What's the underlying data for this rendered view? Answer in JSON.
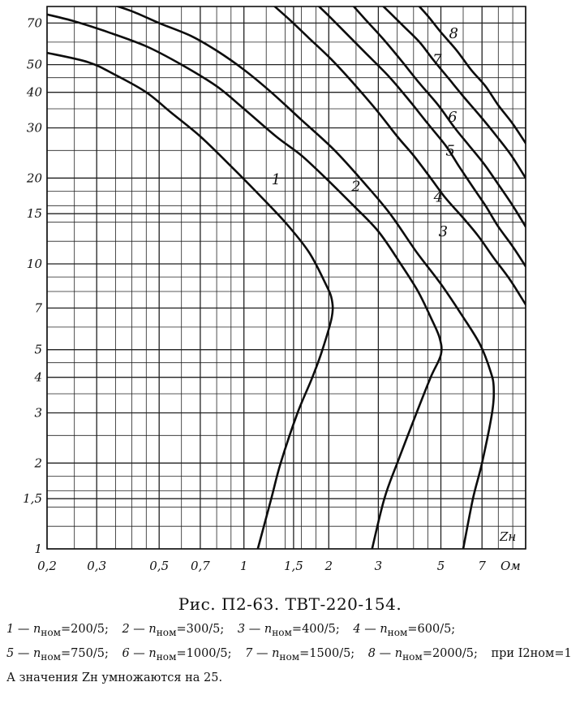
{
  "chart_data": {
    "type": "line",
    "title": "",
    "x_scale": "log",
    "y_scale": "log",
    "xlim": [
      0.2,
      10
    ],
    "ylim": [
      1,
      80
    ],
    "x_unit_label": "Ом",
    "y_label": "",
    "corner_label": "Zн",
    "x_ticks": [
      {
        "v": 0.2,
        "label": "0,2"
      },
      {
        "v": 0.3,
        "label": "0,3"
      },
      {
        "v": 0.5,
        "label": "0,5"
      },
      {
        "v": 0.7,
        "label": "0,7"
      },
      {
        "v": 1,
        "label": "1"
      },
      {
        "v": 1.5,
        "label": "1,5"
      },
      {
        "v": 2,
        "label": "2"
      },
      {
        "v": 3,
        "label": "3"
      },
      {
        "v": 5,
        "label": "5"
      },
      {
        "v": 7,
        "label": "7"
      }
    ],
    "y_ticks": [
      {
        "v": 1,
        "label": "1"
      },
      {
        "v": 1.5,
        "label": "1,5"
      },
      {
        "v": 2,
        "label": "2"
      },
      {
        "v": 3,
        "label": "3"
      },
      {
        "v": 4,
        "label": "4"
      },
      {
        "v": 5,
        "label": "5"
      },
      {
        "v": 7,
        "label": "7"
      },
      {
        "v": 10,
        "label": "10"
      },
      {
        "v": 15,
        "label": "15"
      },
      {
        "v": 20,
        "label": "20"
      },
      {
        "v": 30,
        "label": "30"
      },
      {
        "v": 40,
        "label": "40"
      },
      {
        "v": 50,
        "label": "50"
      },
      {
        "v": 70,
        "label": "70"
      }
    ],
    "grid": true,
    "series": [
      {
        "name": "1",
        "label_at": [
          1.3,
          19
        ],
        "points": [
          [
            1.12,
            1
          ],
          [
            1.25,
            1.5
          ],
          [
            1.35,
            2
          ],
          [
            1.55,
            3
          ],
          [
            1.75,
            4
          ],
          [
            1.9,
            5
          ],
          [
            2.05,
            6.5
          ],
          [
            2.05,
            7.5
          ],
          [
            1.95,
            8.5
          ],
          [
            1.7,
            11
          ],
          [
            1.4,
            14
          ],
          [
            1.1,
            18
          ],
          [
            0.9,
            22
          ],
          [
            0.7,
            28
          ],
          [
            0.55,
            34
          ],
          [
            0.45,
            40
          ],
          [
            0.35,
            46
          ],
          [
            0.28,
            51
          ],
          [
            0.2,
            55
          ]
        ]
      },
      {
        "name": "2",
        "label_at": [
          2.5,
          18
        ],
        "points": [
          [
            2.85,
            1
          ],
          [
            3.15,
            1.5
          ],
          [
            3.5,
            2
          ],
          [
            4.1,
            3
          ],
          [
            4.6,
            4
          ],
          [
            5.0,
            4.8
          ],
          [
            4.95,
            5.5
          ],
          [
            4.6,
            6.5
          ],
          [
            4.15,
            8
          ],
          [
            3.6,
            10
          ],
          [
            3.0,
            13
          ],
          [
            2.45,
            16
          ],
          [
            1.95,
            20
          ],
          [
            1.6,
            24
          ],
          [
            1.3,
            28
          ],
          [
            1.0,
            35
          ],
          [
            0.8,
            42
          ],
          [
            0.6,
            50
          ],
          [
            0.45,
            58
          ],
          [
            0.33,
            65
          ],
          [
            0.25,
            71
          ],
          [
            0.2,
            75
          ]
        ]
      },
      {
        "name": "3",
        "label_at": [
          5.1,
          12.5
        ],
        "points": [
          [
            6.0,
            1
          ],
          [
            6.5,
            1.5
          ],
          [
            7.0,
            2
          ],
          [
            7.6,
            3
          ],
          [
            7.7,
            3.7
          ],
          [
            7.5,
            4.2
          ],
          [
            6.9,
            5.2
          ],
          [
            6.0,
            6.5
          ],
          [
            5.0,
            8.5
          ],
          [
            4.1,
            11
          ],
          [
            3.3,
            15
          ],
          [
            2.7,
            19
          ],
          [
            2.1,
            25
          ],
          [
            1.6,
            32
          ],
          [
            1.25,
            40
          ],
          [
            1.0,
            48
          ],
          [
            0.8,
            56
          ],
          [
            0.65,
            63
          ],
          [
            0.5,
            70
          ],
          [
            0.4,
            77
          ],
          [
            0.33,
            82
          ]
        ]
      },
      {
        "name": "4",
        "label_at": [
          4.9,
          16.5
        ],
        "points": [
          [
            10,
            7.2
          ],
          [
            8.8,
            8.8
          ],
          [
            7.7,
            10.5
          ],
          [
            6.8,
            12.5
          ],
          [
            6.0,
            14.5
          ],
          [
            5.2,
            17
          ],
          [
            4.6,
            20
          ],
          [
            4.0,
            24
          ],
          [
            3.5,
            28
          ],
          [
            3.0,
            34
          ],
          [
            2.5,
            42
          ],
          [
            2.05,
            52
          ],
          [
            1.7,
            62
          ],
          [
            1.45,
            72
          ],
          [
            1.25,
            82
          ]
        ]
      },
      {
        "name": "5",
        "label_at": [
          5.4,
          24
        ],
        "points": [
          [
            10,
            9.8
          ],
          [
            9.0,
            11.5
          ],
          [
            8.0,
            13.5
          ],
          [
            7.2,
            16
          ],
          [
            6.4,
            19
          ],
          [
            5.8,
            22
          ],
          [
            5.2,
            26
          ],
          [
            4.5,
            31
          ],
          [
            3.9,
            37
          ],
          [
            3.3,
            45
          ],
          [
            2.7,
            55
          ],
          [
            2.25,
            66
          ],
          [
            1.95,
            76
          ],
          [
            1.8,
            82
          ]
        ]
      },
      {
        "name": "6",
        "label_at": [
          5.5,
          31.5
        ],
        "points": [
          [
            10,
            13.5
          ],
          [
            9.0,
            16
          ],
          [
            8.0,
            19
          ],
          [
            7.1,
            22.5
          ],
          [
            6.3,
            26
          ],
          [
            5.6,
            30
          ],
          [
            4.9,
            36
          ],
          [
            4.2,
            43
          ],
          [
            3.6,
            52
          ],
          [
            3.1,
            62
          ],
          [
            2.7,
            72
          ],
          [
            2.4,
            82
          ]
        ]
      },
      {
        "name": "7",
        "label_at": [
          4.85,
          50
        ],
        "points": [
          [
            10,
            20
          ],
          [
            8.9,
            24
          ],
          [
            7.9,
            28
          ],
          [
            6.9,
            33
          ],
          [
            6.1,
            38
          ],
          [
            5.4,
            44
          ],
          [
            4.7,
            52
          ],
          [
            4.2,
            60
          ],
          [
            3.7,
            68
          ],
          [
            3.3,
            76
          ],
          [
            3.05,
            82
          ]
        ]
      },
      {
        "name": "8",
        "label_at": [
          5.55,
          62
        ],
        "points": [
          [
            10,
            26.5
          ],
          [
            9.0,
            31
          ],
          [
            8.0,
            36
          ],
          [
            7.2,
            42
          ],
          [
            6.4,
            48
          ],
          [
            5.7,
            56
          ],
          [
            5.0,
            65
          ],
          [
            4.5,
            74
          ],
          [
            4.1,
            82
          ]
        ]
      }
    ]
  },
  "caption": {
    "figure_title": "Рис. П2-63. ТВТ-220-154.",
    "legend": [
      {
        "num": "1",
        "sep": " — ",
        "var": "n",
        "sub": "ном",
        "value": "=200/5;"
      },
      {
        "num": "2",
        "sep": " — ",
        "var": "n",
        "sub": "ном",
        "value": "=300/5;"
      },
      {
        "num": "3",
        "sep": " — ",
        "var": "n",
        "sub": "ном",
        "value": "=400/5;"
      },
      {
        "num": "4",
        "sep": " — ",
        "var": "n",
        "sub": "ном",
        "value": "=600/5;"
      },
      {
        "num": "5",
        "sep": " — ",
        "var": "n",
        "sub": "ном",
        "value": "=750/5;"
      },
      {
        "num": "6",
        "sep": " — ",
        "var": "n",
        "sub": "ном",
        "value": "=1000/5;"
      },
      {
        "num": "7",
        "sep": " — ",
        "var": "n",
        "sub": "ном",
        "value": "=1500/5;"
      },
      {
        "num": "8",
        "sep": " — ",
        "var": "n",
        "sub": "ном",
        "value": "=2000/5;"
      }
    ],
    "note": "при I2ном=1 А значения Zн умножаются на 25."
  }
}
